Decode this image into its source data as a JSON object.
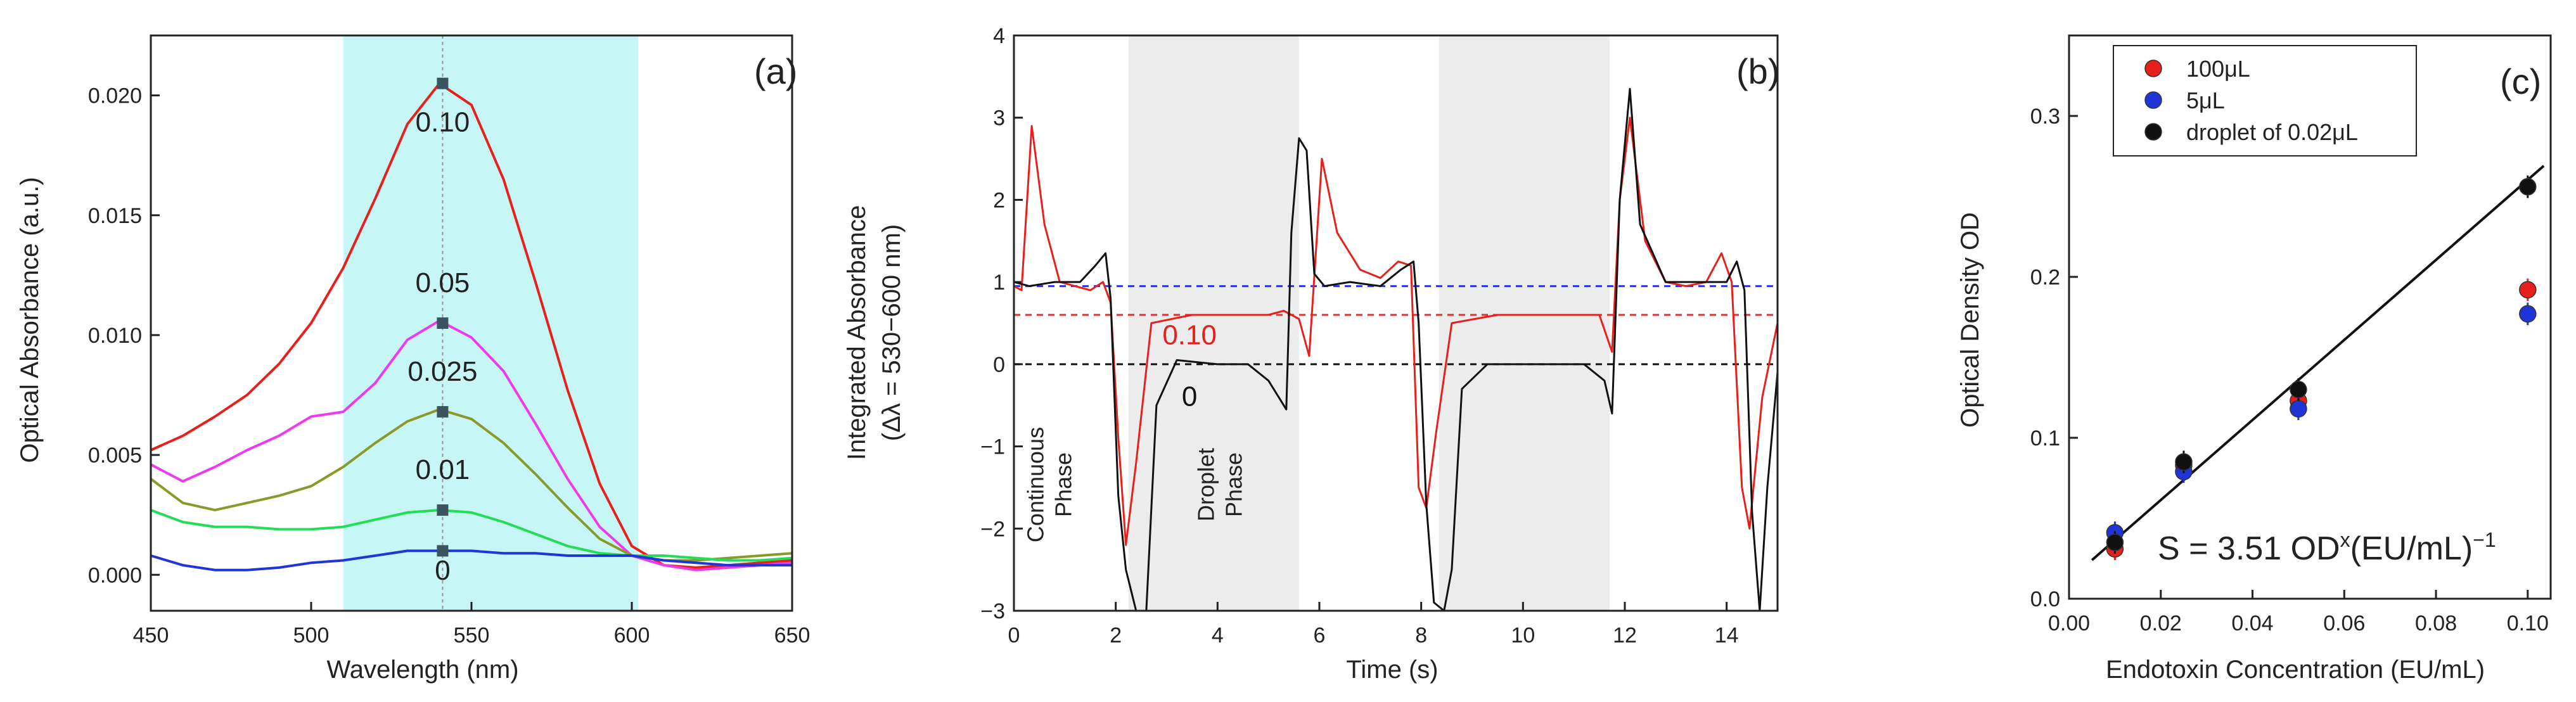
{
  "colors": {
    "axis": "#222222",
    "panel_a_band": "#c6f6f6",
    "panel_b_band": "#ececec",
    "red": "#e8201c",
    "magenta": "#ee3aee",
    "olive": "#8a9a2a",
    "green": "#22dd55",
    "blue": "#2035d8",
    "black": "#111111",
    "marker": "#3a5560",
    "dash_blue": "#2a35e0",
    "dash_red": "#e03030"
  },
  "chart_data": [
    {
      "id": "a",
      "type": "line",
      "panel_label": "(a)",
      "xlabel": "Wavelength (nm)",
      "ylabel": "Optical Absorbance (a.u.)",
      "xlim": [
        450,
        650
      ],
      "ylim": [
        -0.0015,
        0.0225
      ],
      "xticks": [
        450,
        500,
        550,
        600,
        650
      ],
      "xtick_labels": [
        "450",
        "500",
        "550",
        "600",
        "650"
      ],
      "yticks": [
        0.0,
        0.005,
        0.01,
        0.015,
        0.02
      ],
      "ytick_labels": [
        "0.000",
        "0.005",
        "0.010",
        "0.015",
        "0.020"
      ],
      "highlight_band": [
        510,
        602
      ],
      "vline": 541,
      "series": [
        {
          "name": "0.10",
          "color_key": "red",
          "x": [
            450,
            460,
            470,
            480,
            490,
            500,
            510,
            520,
            530,
            540,
            550,
            560,
            570,
            580,
            590,
            600,
            610,
            620,
            630,
            640,
            650
          ],
          "y": [
            0.0052,
            0.0058,
            0.0066,
            0.0075,
            0.0088,
            0.0105,
            0.0128,
            0.0157,
            0.0188,
            0.0205,
            0.0196,
            0.0165,
            0.0122,
            0.0077,
            0.0038,
            0.0012,
            0.0004,
            0.0003,
            0.0004,
            0.0005,
            0.0006
          ],
          "marker": [
            541,
            0.0205
          ]
        },
        {
          "name": "0.05",
          "color_key": "magenta",
          "x": [
            450,
            460,
            470,
            480,
            490,
            500,
            510,
            520,
            530,
            540,
            550,
            560,
            570,
            580,
            590,
            600,
            610,
            620,
            630,
            640,
            650
          ],
          "y": [
            0.0046,
            0.0039,
            0.0045,
            0.0052,
            0.0058,
            0.0066,
            0.0068,
            0.008,
            0.0098,
            0.0106,
            0.0099,
            0.0085,
            0.0063,
            0.004,
            0.002,
            0.0008,
            0.0004,
            0.0002,
            0.0003,
            0.0004,
            0.0005
          ],
          "marker": [
            541,
            0.0105
          ]
        },
        {
          "name": "0.025",
          "color_key": "olive",
          "x": [
            450,
            460,
            470,
            480,
            490,
            500,
            510,
            520,
            530,
            540,
            550,
            560,
            570,
            580,
            590,
            600,
            610,
            620,
            630,
            640,
            650
          ],
          "y": [
            0.004,
            0.003,
            0.0027,
            0.003,
            0.0033,
            0.0037,
            0.0045,
            0.0055,
            0.0064,
            0.0069,
            0.0065,
            0.0055,
            0.0042,
            0.0028,
            0.0015,
            0.0008,
            0.0006,
            0.0006,
            0.0007,
            0.0008,
            0.0009
          ],
          "marker": [
            541,
            0.0068
          ]
        },
        {
          "name": "0.01",
          "color_key": "green",
          "x": [
            450,
            460,
            470,
            480,
            490,
            500,
            510,
            520,
            530,
            540,
            550,
            560,
            570,
            580,
            590,
            600,
            610,
            620,
            630,
            640,
            650
          ],
          "y": [
            0.0027,
            0.0022,
            0.002,
            0.002,
            0.0019,
            0.0019,
            0.002,
            0.0023,
            0.0026,
            0.0027,
            0.0026,
            0.0022,
            0.0017,
            0.0012,
            0.0009,
            0.0008,
            0.0008,
            0.0007,
            0.0006,
            0.0006,
            0.0007
          ],
          "marker": [
            541,
            0.0027
          ]
        },
        {
          "name": "0",
          "color_key": "blue",
          "x": [
            450,
            460,
            470,
            480,
            490,
            500,
            510,
            520,
            530,
            540,
            550,
            560,
            570,
            580,
            590,
            600,
            610,
            620,
            630,
            640,
            650
          ],
          "y": [
            0.0008,
            0.0004,
            0.0002,
            0.0002,
            0.0003,
            0.0005,
            0.0006,
            0.0008,
            0.001,
            0.001,
            0.001,
            0.0009,
            0.0009,
            0.0008,
            0.0008,
            0.0008,
            0.0006,
            0.0005,
            0.0004,
            0.0004,
            0.0004
          ],
          "marker": [
            541,
            0.001
          ]
        }
      ],
      "series_labels": [
        {
          "text": "0.10",
          "x": 541,
          "y": 0.0185
        },
        {
          "text": "0.05",
          "x": 541,
          "y": 0.0118
        },
        {
          "text": "0.025",
          "x": 541,
          "y": 0.0081
        },
        {
          "text": "0.01",
          "x": 541,
          "y": 0.004
        },
        {
          "text": "0",
          "x": 541,
          "y": -0.0002
        }
      ]
    },
    {
      "id": "b",
      "type": "line",
      "panel_label": "(b)",
      "xlabel": "Time (s)",
      "ylabel_line1": "Integrated Absorbance",
      "ylabel_line2": "(Δλ = 530−600 nm)",
      "xlim": [
        0,
        15
      ],
      "ylim": [
        -3,
        4
      ],
      "xticks": [
        0,
        2,
        4,
        6,
        8,
        10,
        12,
        14
      ],
      "xtick_labels": [
        "0",
        "2",
        "4",
        "6",
        "8",
        "10",
        "12",
        "14"
      ],
      "yticks": [
        -3,
        -2,
        -1,
        0,
        1,
        2,
        3,
        4
      ],
      "ytick_labels": [
        "−3",
        "−2",
        "−1",
        "0",
        "1",
        "2",
        "3",
        "4"
      ],
      "bands": [
        [
          2.25,
          5.6
        ],
        [
          8.35,
          11.7
        ]
      ],
      "reference_lines": [
        {
          "y": 0.95,
          "color_key": "dash_blue"
        },
        {
          "y": 0.6,
          "color_key": "dash_red"
        },
        {
          "y": 0.0,
          "color_key": "black"
        }
      ],
      "series": [
        {
          "name": "0.10",
          "color_key": "red",
          "x": [
            0,
            0.15,
            0.35,
            0.6,
            0.9,
            1.2,
            1.5,
            1.75,
            1.9,
            2.05,
            2.2,
            2.4,
            2.7,
            3.5,
            4.5,
            5.0,
            5.3,
            5.6,
            5.8,
            6.05,
            6.35,
            6.8,
            7.2,
            7.55,
            7.8,
            7.95,
            8.1,
            8.3,
            8.6,
            9.5,
            10.5,
            11.0,
            11.5,
            11.75,
            11.9,
            12.1,
            12.4,
            12.8,
            13.2,
            13.6,
            13.9,
            14.1,
            14.3,
            14.45,
            14.7,
            15.0
          ],
          "y": [
            0.95,
            0.9,
            2.9,
            1.7,
            1.0,
            0.95,
            0.9,
            1.0,
            0.75,
            -0.9,
            -2.2,
            -1.2,
            0.5,
            0.6,
            0.6,
            0.6,
            0.65,
            0.55,
            0.1,
            2.5,
            1.6,
            1.15,
            1.05,
            1.25,
            1.2,
            -1.5,
            -1.75,
            -0.8,
            0.5,
            0.6,
            0.6,
            0.6,
            0.6,
            0.15,
            2.0,
            3.0,
            1.5,
            1.0,
            0.95,
            1.0,
            1.35,
            1.0,
            -1.5,
            -2.0,
            -0.4,
            0.5
          ]
        },
        {
          "name": "0",
          "color_key": "black",
          "x": [
            0,
            0.3,
            0.8,
            1.3,
            1.6,
            1.8,
            1.9,
            2.05,
            2.2,
            2.4,
            2.6,
            2.8,
            3.2,
            4.0,
            4.6,
            5.0,
            5.35,
            5.45,
            5.6,
            5.75,
            5.9,
            6.1,
            6.6,
            7.2,
            7.6,
            7.85,
            7.95,
            8.1,
            8.25,
            8.45,
            8.6,
            8.8,
            9.3,
            10.5,
            11.2,
            11.6,
            11.75,
            11.9,
            12.1,
            12.3,
            12.8,
            13.4,
            14.0,
            14.2,
            14.35,
            14.5,
            14.65,
            14.8,
            15.0
          ],
          "y": [
            1.0,
            0.95,
            1.0,
            1.0,
            1.2,
            1.35,
            0.8,
            -1.6,
            -2.5,
            -3.0,
            -3.0,
            -0.5,
            0.05,
            0.0,
            0.0,
            -0.2,
            -0.55,
            1.6,
            2.75,
            2.6,
            1.1,
            0.95,
            1.0,
            0.95,
            1.15,
            1.25,
            0.5,
            -1.7,
            -2.9,
            -3.0,
            -2.5,
            -0.3,
            0.0,
            0.0,
            0.0,
            -0.2,
            -0.6,
            2.0,
            3.35,
            1.7,
            1.0,
            1.0,
            1.0,
            1.25,
            0.9,
            -1.8,
            -3.0,
            -1.5,
            -0.1
          ]
        }
      ],
      "series_labels": [
        {
          "text": "0.10",
          "x": 3.45,
          "y": 0.35,
          "color_key": "red"
        },
        {
          "text": "0",
          "x": 3.45,
          "y": -0.4,
          "color_key": "black"
        }
      ],
      "annotations": [
        {
          "line1": "Continuous",
          "line2": "Phase",
          "x": 0.85
        },
        {
          "line1": "Droplet",
          "line2": "Phase",
          "x": 4.2
        }
      ]
    },
    {
      "id": "c",
      "type": "scatter",
      "panel_label": "(c)",
      "xlabel": "Endotoxin Concentration (EU/mL)",
      "ylabel": "Optical Density OD",
      "xlim": [
        0.0,
        0.105
      ],
      "ylim": [
        0.0,
        0.35
      ],
      "xticks": [
        0.0,
        0.02,
        0.04,
        0.06,
        0.08,
        0.1
      ],
      "xtick_labels": [
        "0.00",
        "0.02",
        "0.04",
        "0.06",
        "0.08",
        "0.10"
      ],
      "yticks": [
        0.0,
        0.1,
        0.2,
        0.3
      ],
      "ytick_labels": [
        "0.0",
        "0.1",
        "0.2",
        "0.3"
      ],
      "series": [
        {
          "name": "100μL",
          "color_key": "red",
          "x": [
            0.01,
            0.025,
            0.05,
            0.1
          ],
          "y": [
            0.031,
            0.083,
            0.123,
            0.192
          ]
        },
        {
          "name": "5μL",
          "color_key": "blue",
          "x": [
            0.01,
            0.025,
            0.05,
            0.1
          ],
          "y": [
            0.041,
            0.079,
            0.118,
            0.177
          ]
        },
        {
          "name": "droplet of 0.02μL",
          "color_key": "black",
          "x": [
            0.01,
            0.025,
            0.05,
            0.1
          ],
          "y": [
            0.035,
            0.085,
            0.13,
            0.256
          ]
        }
      ],
      "error_half_width": 0.007,
      "fit_line": {
        "x": [
          0.005,
          0.1035
        ],
        "y": [
          0.024,
          0.269
        ]
      },
      "annotation_prefix": "S = 3.51 OD",
      "annotation_sup": "x",
      "annotation_mid": "(EU/mL)",
      "annotation_sup2": "−1",
      "legend_position": "top-left"
    }
  ]
}
